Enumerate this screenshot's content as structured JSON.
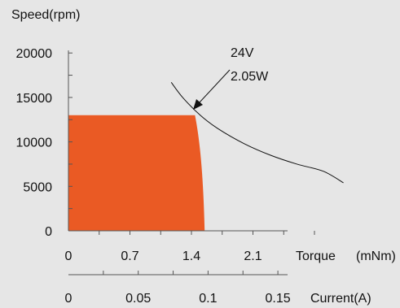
{
  "chart_data": {
    "type": "area",
    "ylabel": "Speed(rpm)",
    "y_ticks": [
      "20000",
      "15000",
      "10000",
      "5000",
      "0"
    ],
    "y_values": [
      20000,
      15000,
      10000,
      5000,
      0
    ],
    "ylim": [
      0,
      20000
    ],
    "torque_axis": {
      "label": "Torque",
      "unit": "(mNm)",
      "ticks": [
        "0",
        "0.7",
        "1.4",
        "2.1"
      ],
      "values": [
        0,
        0.7,
        1.4,
        2.1
      ],
      "xlim": [
        0,
        2.8
      ]
    },
    "current_axis": {
      "label": "Current(A)",
      "ticks": [
        "0",
        "0.05",
        "0.1",
        "0.15"
      ],
      "values": [
        0,
        0.05,
        0.1,
        0.15
      ]
    },
    "operating_region": {
      "color": "#ea5a24",
      "points": [
        {
          "torque": 0,
          "speed": 0
        },
        {
          "torque": 0,
          "speed": 13000
        },
        {
          "torque": 1.44,
          "speed": 13000
        },
        {
          "torque": 1.5,
          "speed": 10000
        },
        {
          "torque": 1.535,
          "speed": 6000
        },
        {
          "torque": 1.55,
          "speed": 0
        }
      ]
    },
    "power_curve": {
      "voltage_label": "24V",
      "power_label": "2.05W",
      "color": "#111111",
      "points": [
        {
          "torque": 1.17,
          "speed": 16700
        },
        {
          "torque": 1.3,
          "speed": 15000
        },
        {
          "torque": 1.5,
          "speed": 13000
        },
        {
          "torque": 1.7,
          "speed": 11500
        },
        {
          "torque": 2.0,
          "speed": 9800
        },
        {
          "torque": 2.3,
          "speed": 8500
        },
        {
          "torque": 2.6,
          "speed": 7500
        },
        {
          "torque": 2.9,
          "speed": 6700
        },
        {
          "torque": 3.13,
          "speed": 5400
        }
      ],
      "arrow_target": {
        "torque": 1.44,
        "speed": 13000
      }
    }
  }
}
